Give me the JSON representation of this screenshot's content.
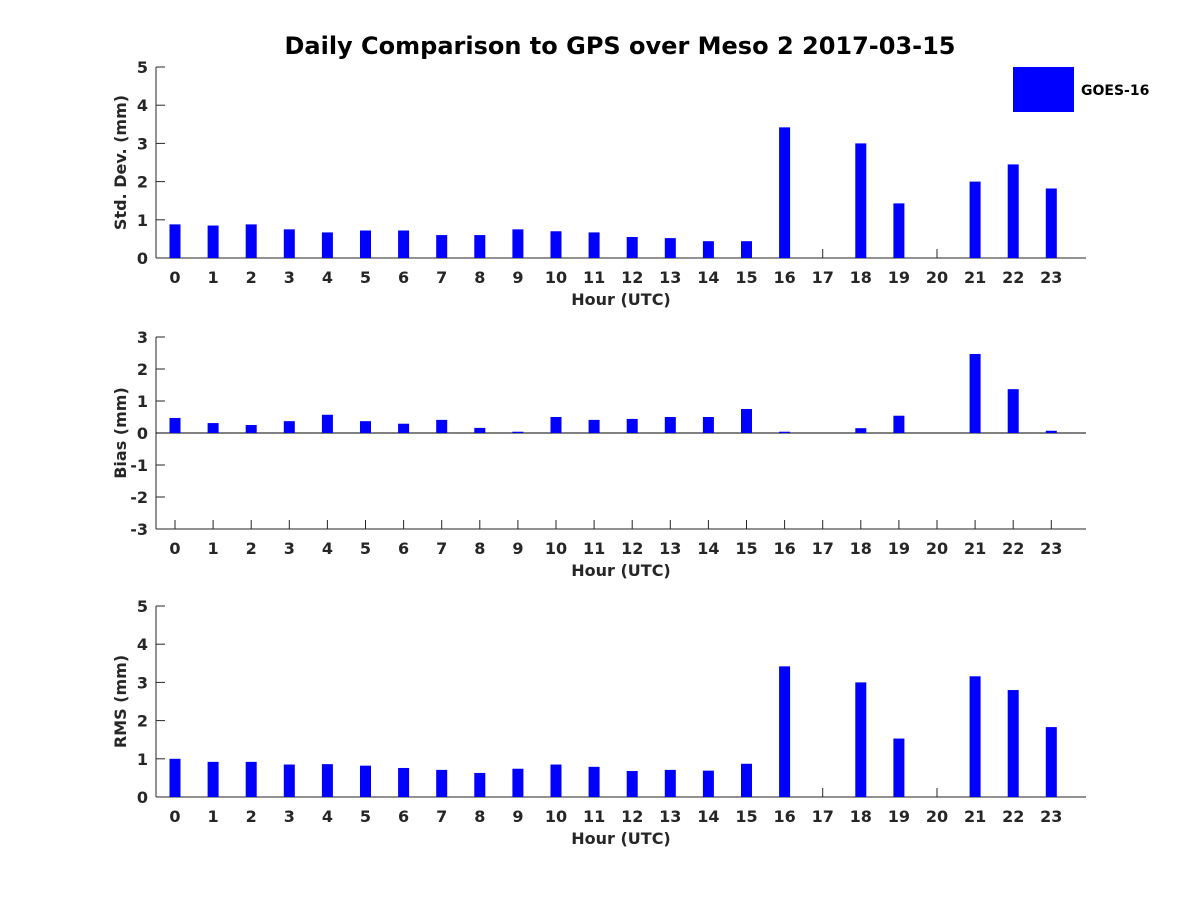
{
  "chart_data": {
    "title": "Daily Comparison to GPS over Meso 2 2017-03-15",
    "bar_color": "#0000ff",
    "legend": {
      "label": "GOES-16",
      "placement": "top-right",
      "color": "#0000ff"
    },
    "categories": [
      "0",
      "1",
      "2",
      "3",
      "4",
      "5",
      "6",
      "7",
      "8",
      "9",
      "10",
      "11",
      "12",
      "13",
      "14",
      "15",
      "16",
      "17",
      "18",
      "19",
      "20",
      "21",
      "22",
      "23"
    ],
    "panels": [
      {
        "type": "bar",
        "key": "std",
        "ylabel": "Std. Dev. (mm)",
        "xlabel": "Hour (UTC)",
        "ylim": [
          0,
          5
        ],
        "yticks": [
          "0",
          "1",
          "2",
          "3",
          "4",
          "5"
        ],
        "values": [
          0.88,
          0.85,
          0.88,
          0.75,
          0.67,
          0.72,
          0.72,
          0.6,
          0.6,
          0.75,
          0.7,
          0.67,
          0.55,
          0.52,
          0.44,
          0.44,
          3.42,
          null,
          3.0,
          1.43,
          null,
          2.0,
          2.45,
          1.82
        ]
      },
      {
        "type": "bar",
        "key": "bias",
        "ylabel": "Bias (mm)",
        "xlabel": "Hour (UTC)",
        "ylim": [
          -3,
          3
        ],
        "yticks": [
          "-3",
          "-2",
          "-1",
          "0",
          "1",
          "2",
          "3"
        ],
        "values": [
          0.47,
          0.31,
          0.25,
          0.37,
          0.57,
          0.37,
          0.29,
          0.41,
          0.16,
          0.04,
          0.5,
          0.41,
          0.44,
          0.5,
          0.5,
          0.75,
          0.04,
          null,
          0.15,
          0.54,
          null,
          2.47,
          1.37,
          0.07
        ]
      },
      {
        "type": "bar",
        "key": "rms",
        "ylabel": "RMS (mm)",
        "xlabel": "Hour (UTC)",
        "ylim": [
          0,
          5
        ],
        "yticks": [
          "0",
          "1",
          "2",
          "3",
          "4",
          "5"
        ],
        "values": [
          1.0,
          0.92,
          0.92,
          0.85,
          0.86,
          0.82,
          0.76,
          0.71,
          0.63,
          0.74,
          0.85,
          0.79,
          0.68,
          0.71,
          0.69,
          0.87,
          3.42,
          null,
          3.0,
          1.53,
          null,
          3.16,
          2.8,
          1.83
        ]
      }
    ]
  }
}
